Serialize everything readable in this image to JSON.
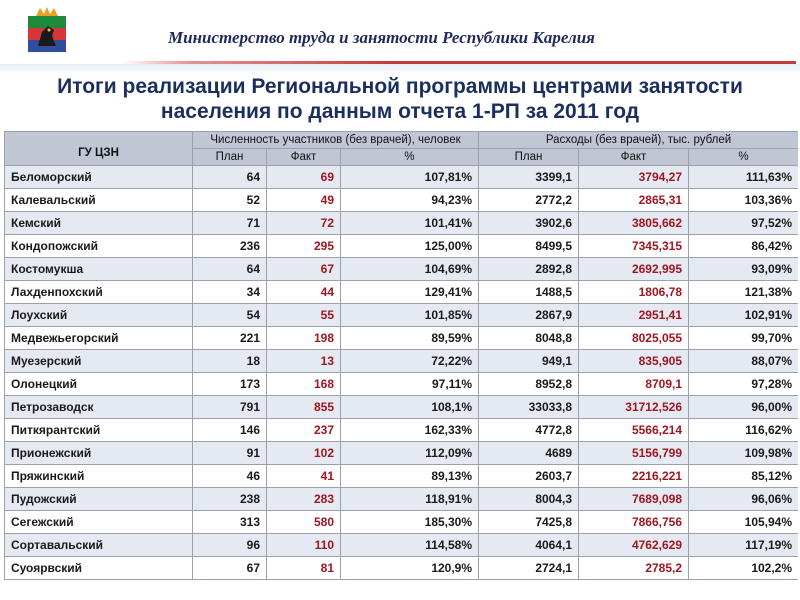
{
  "header": {
    "ministry": "Министерство труда и занятости Республики Карелия"
  },
  "title": {
    "line1": "Итоги реализации Региональной программы центрами занятости",
    "line2": "населения по данным отчета 1-РП за 2011 год"
  },
  "colors": {
    "title": "#1b2f5e",
    "fact_text": "#a01620",
    "rule": "#c43b3b",
    "header_bg": "#c0c6d4",
    "row_odd": "#e5e9f1"
  },
  "table": {
    "col_gu": "ГУ ЦЗН",
    "group_participants": "Численность участников (без врачей), человек",
    "group_expenses": "Расходы (без врачей), тыс. рублей",
    "sub": [
      "План",
      "Факт",
      "%",
      "План",
      "Факт",
      "%"
    ],
    "rows": [
      [
        "Беломорский",
        "64",
        "69",
        "107,81%",
        "3399,1",
        "3794,27",
        "111,63%"
      ],
      [
        "Калевальский",
        "52",
        "49",
        "94,23%",
        "2772,2",
        "2865,31",
        "103,36%"
      ],
      [
        "Кемский",
        "71",
        "72",
        "101,41%",
        "3902,6",
        "3805,662",
        "97,52%"
      ],
      [
        "Кондопожский",
        "236",
        "295",
        "125,00%",
        "8499,5",
        "7345,315",
        "86,42%"
      ],
      [
        "Костомукша",
        "64",
        "67",
        "104,69%",
        "2892,8",
        "2692,995",
        "93,09%"
      ],
      [
        "Лахденпохский",
        "34",
        "44",
        "129,41%",
        "1488,5",
        "1806,78",
        "121,38%"
      ],
      [
        "Лоухский",
        "54",
        "55",
        "101,85%",
        "2867,9",
        "2951,41",
        "102,91%"
      ],
      [
        "Медвежьегорский",
        "221",
        "198",
        "89,59%",
        "8048,8",
        "8025,055",
        "99,70%"
      ],
      [
        "Муезерский",
        "18",
        "13",
        "72,22%",
        "949,1",
        "835,905",
        "88,07%"
      ],
      [
        "Олонецкий",
        "173",
        "168",
        "97,11%",
        "8952,8",
        "8709,1",
        "97,28%"
      ],
      [
        "Петрозаводск",
        "791",
        "855",
        "108,1%",
        "33033,8",
        "31712,526",
        "96,00%"
      ],
      [
        "Питкярантский",
        "146",
        "237",
        "162,33%",
        "4772,8",
        "5566,214",
        "116,62%"
      ],
      [
        "Прионежский",
        "91",
        "102",
        "112,09%",
        "4689",
        "5156,799",
        "109,98%"
      ],
      [
        "Пряжинский",
        "46",
        "41",
        "89,13%",
        "2603,7",
        "2216,221",
        "85,12%"
      ],
      [
        "Пудожский",
        "238",
        "283",
        "118,91%",
        "8004,3",
        "7689,098",
        "96,06%"
      ],
      [
        "Сегежский",
        "313",
        "580",
        "185,30%",
        "7425,8",
        "7866,756",
        "105,94%"
      ],
      [
        "Сортавальский",
        "96",
        "110",
        "114,58%",
        "4064,1",
        "4762,629",
        "117,19%"
      ],
      [
        "Суоярвский",
        "67",
        "81",
        "120,9%",
        "2724,1",
        "2785,2",
        "102,2%"
      ]
    ]
  }
}
